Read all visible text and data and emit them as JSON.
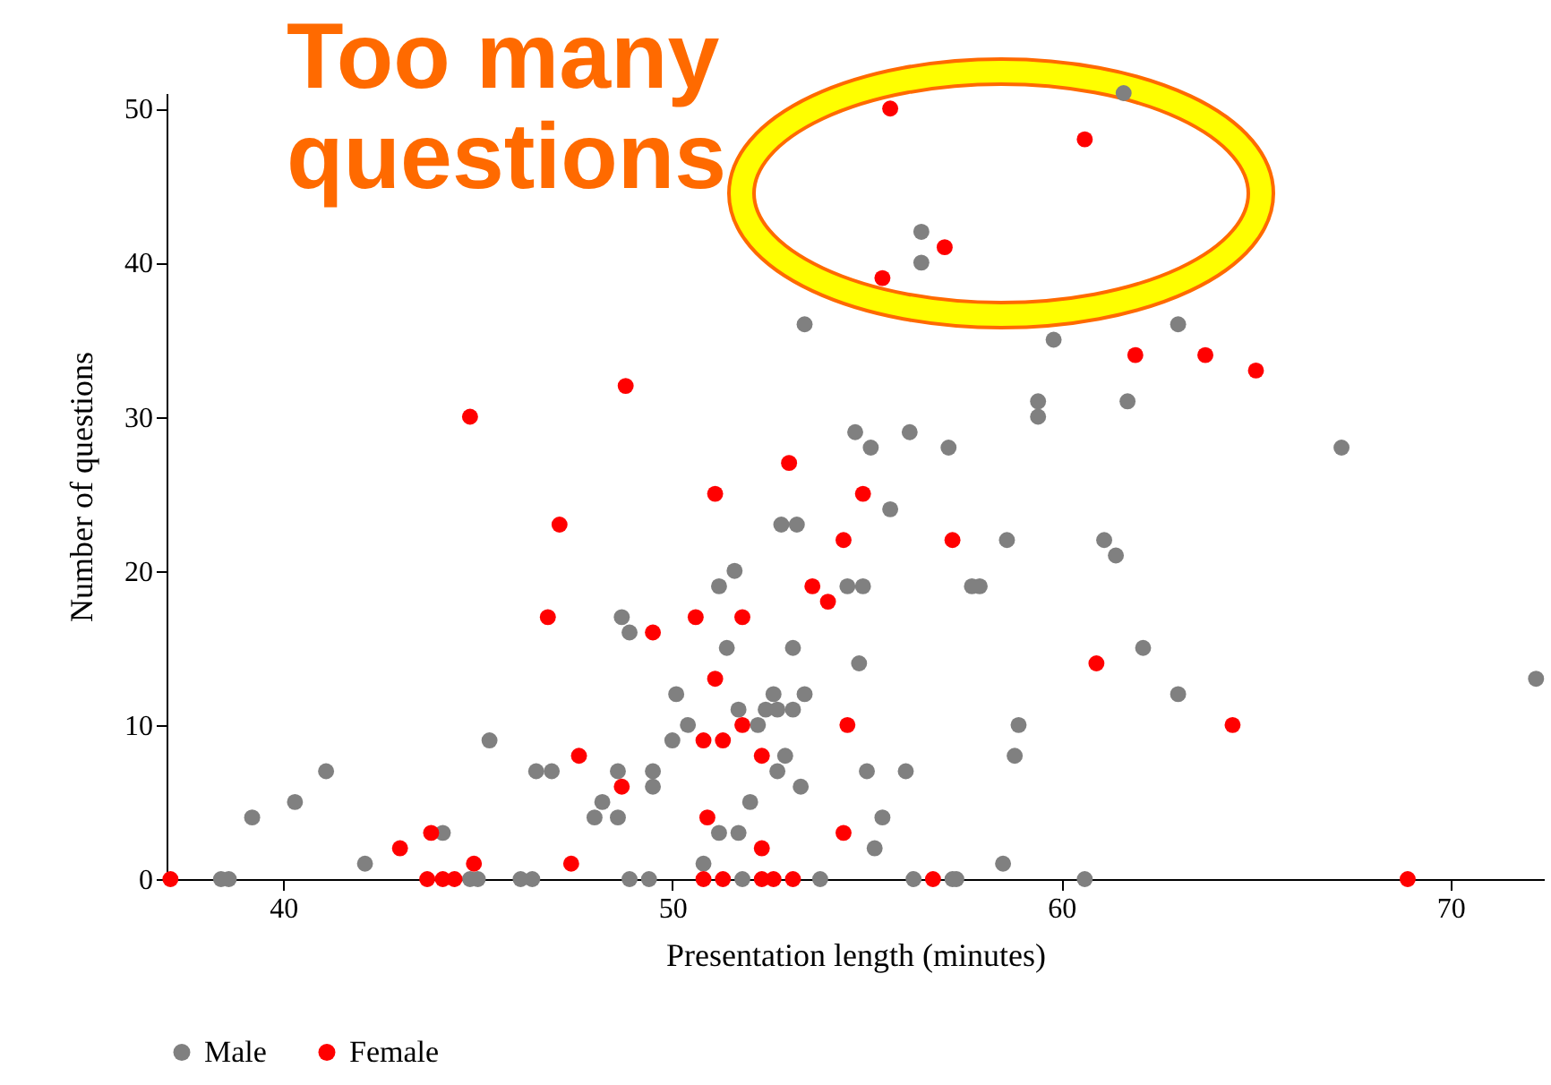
{
  "chart_data": {
    "type": "scatter",
    "xlabel": "Presentation length (minutes)",
    "ylabel": "Number of questions",
    "annotations": [
      "Too many questions"
    ],
    "xlim": [
      37,
      72.4
    ],
    "xticks": [
      40,
      50,
      60,
      70
    ],
    "ylim": [
      0,
      51
    ],
    "yticks": [
      0,
      10,
      20,
      30,
      40,
      50
    ],
    "legend": "bottom",
    "marker": "circle",
    "series": [
      {
        "name": "Male",
        "color": "#808080",
        "x": [
          38.4,
          38.6,
          39.2,
          40.3,
          41.1,
          42.1,
          44.1,
          44.8,
          45.0,
          45.3,
          46.1,
          46.4,
          46.5,
          46.9,
          48.0,
          48.2,
          48.6,
          48.6,
          48.7,
          48.9,
          48.9,
          49.4,
          49.5,
          49.5,
          50.0,
          50.1,
          50.4,
          50.8,
          51.2,
          51.2,
          51.4,
          51.6,
          51.7,
          51.7,
          51.8,
          52.0,
          52.2,
          52.4,
          52.6,
          52.7,
          52.7,
          52.8,
          52.9,
          53.1,
          53.1,
          53.2,
          53.3,
          53.4,
          53.4,
          53.8,
          54.5,
          54.7,
          54.8,
          54.9,
          55.0,
          55.1,
          55.2,
          55.4,
          55.6,
          56.0,
          56.1,
          56.2,
          56.4,
          56.4,
          57.1,
          57.2,
          57.3,
          57.7,
          57.9,
          58.5,
          58.6,
          58.8,
          58.9,
          59.4,
          59.4,
          59.8,
          60.6,
          61.1,
          61.4,
          61.6,
          61.7,
          62.1,
          63.0,
          63.0,
          67.2,
          72.2
        ],
        "values": [
          0,
          0,
          4,
          5,
          7,
          1,
          3,
          0,
          0,
          9,
          0,
          0,
          7,
          7,
          4,
          5,
          4,
          7,
          17,
          16,
          0,
          0,
          7,
          6,
          9,
          12,
          10,
          1,
          19,
          3,
          15,
          20,
          11,
          3,
          0,
          5,
          10,
          11,
          12,
          11,
          7,
          23,
          8,
          11,
          15,
          23,
          6,
          12,
          36,
          0,
          19,
          29,
          14,
          19,
          7,
          28,
          2,
          4,
          24,
          7,
          29,
          0,
          42,
          40,
          28,
          0,
          0,
          19,
          19,
          1,
          22,
          8,
          10,
          31,
          30,
          35,
          0,
          22,
          21,
          51,
          31,
          15,
          12,
          36,
          28,
          13
        ]
      },
      {
        "name": "Female",
        "color": "#ff0000",
        "x": [
          37.1,
          43.0,
          43.7,
          43.8,
          44.1,
          44.4,
          44.8,
          44.9,
          46.8,
          47.1,
          47.4,
          47.6,
          48.7,
          48.8,
          49.5,
          50.6,
          50.8,
          50.8,
          50.9,
          51.1,
          51.1,
          51.3,
          51.3,
          51.8,
          51.8,
          52.3,
          52.3,
          52.3,
          52.6,
          53.0,
          53.1,
          53.6,
          54.0,
          54.4,
          54.4,
          54.5,
          54.9,
          55.4,
          55.6,
          56.7,
          57.0,
          57.2,
          60.6,
          60.9,
          61.9,
          63.7,
          64.4,
          65.0,
          68.9
        ],
        "values": [
          0,
          2,
          0,
          3,
          0,
          0,
          30,
          1,
          17,
          23,
          1,
          8,
          6,
          32,
          16,
          17,
          9,
          0,
          4,
          25,
          13,
          9,
          0,
          17,
          10,
          8,
          2,
          0,
          0,
          27,
          0,
          19,
          18,
          22,
          3,
          10,
          25,
          39,
          50,
          0,
          41,
          22,
          48,
          14,
          34,
          34,
          10,
          33,
          0
        ]
      }
    ]
  }
}
